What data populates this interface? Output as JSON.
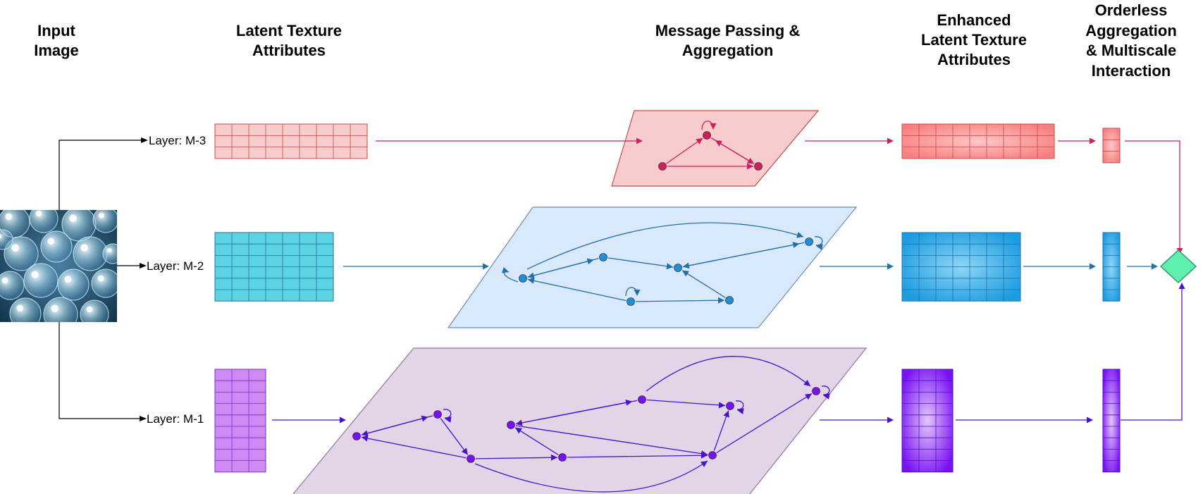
{
  "headers": {
    "input": "Input\nImage",
    "latent": "Latent Texture\nAttributes",
    "message": "Message Passing &\nAggregation",
    "enhanced": "Enhanced\nLatent Texture\nAttributes",
    "orderless": "Orderless\nAggregation\n& Multiscale\nInteraction"
  },
  "layers": [
    {
      "label": "Layer: M-3",
      "color": "#cc1f5c",
      "cell_fill": "#f8cccc",
      "cell_stroke": "#c84a4a",
      "enhanced_fill": "#f77f7f"
    },
    {
      "label": "Layer: M-2",
      "color": "#1f6fa8",
      "cell_fill": "#5cd3e3",
      "cell_stroke": "#2a6f9a",
      "enhanced_fill": "#1fa0e0"
    },
    {
      "label": "Layer: M-1",
      "color": "#4b12c9",
      "cell_fill": "#cc8af2",
      "cell_stroke": "#7a2fc4",
      "enhanced_fill": "#7a11f2"
    }
  ],
  "planes": [
    {
      "fill": "#f8cccc",
      "stroke": "#c84a4a"
    },
    {
      "fill": "#dae8fc",
      "stroke": "#6c8ebf"
    },
    {
      "fill": "#e1d5e7",
      "stroke": "#9673a6"
    }
  ],
  "input_image": {
    "icon": "bubbles-texture-image"
  },
  "output_node": {
    "fill": "#5ff0b0",
    "stroke": "#2f9a6a",
    "icon": "diamond-aggregation-node"
  }
}
